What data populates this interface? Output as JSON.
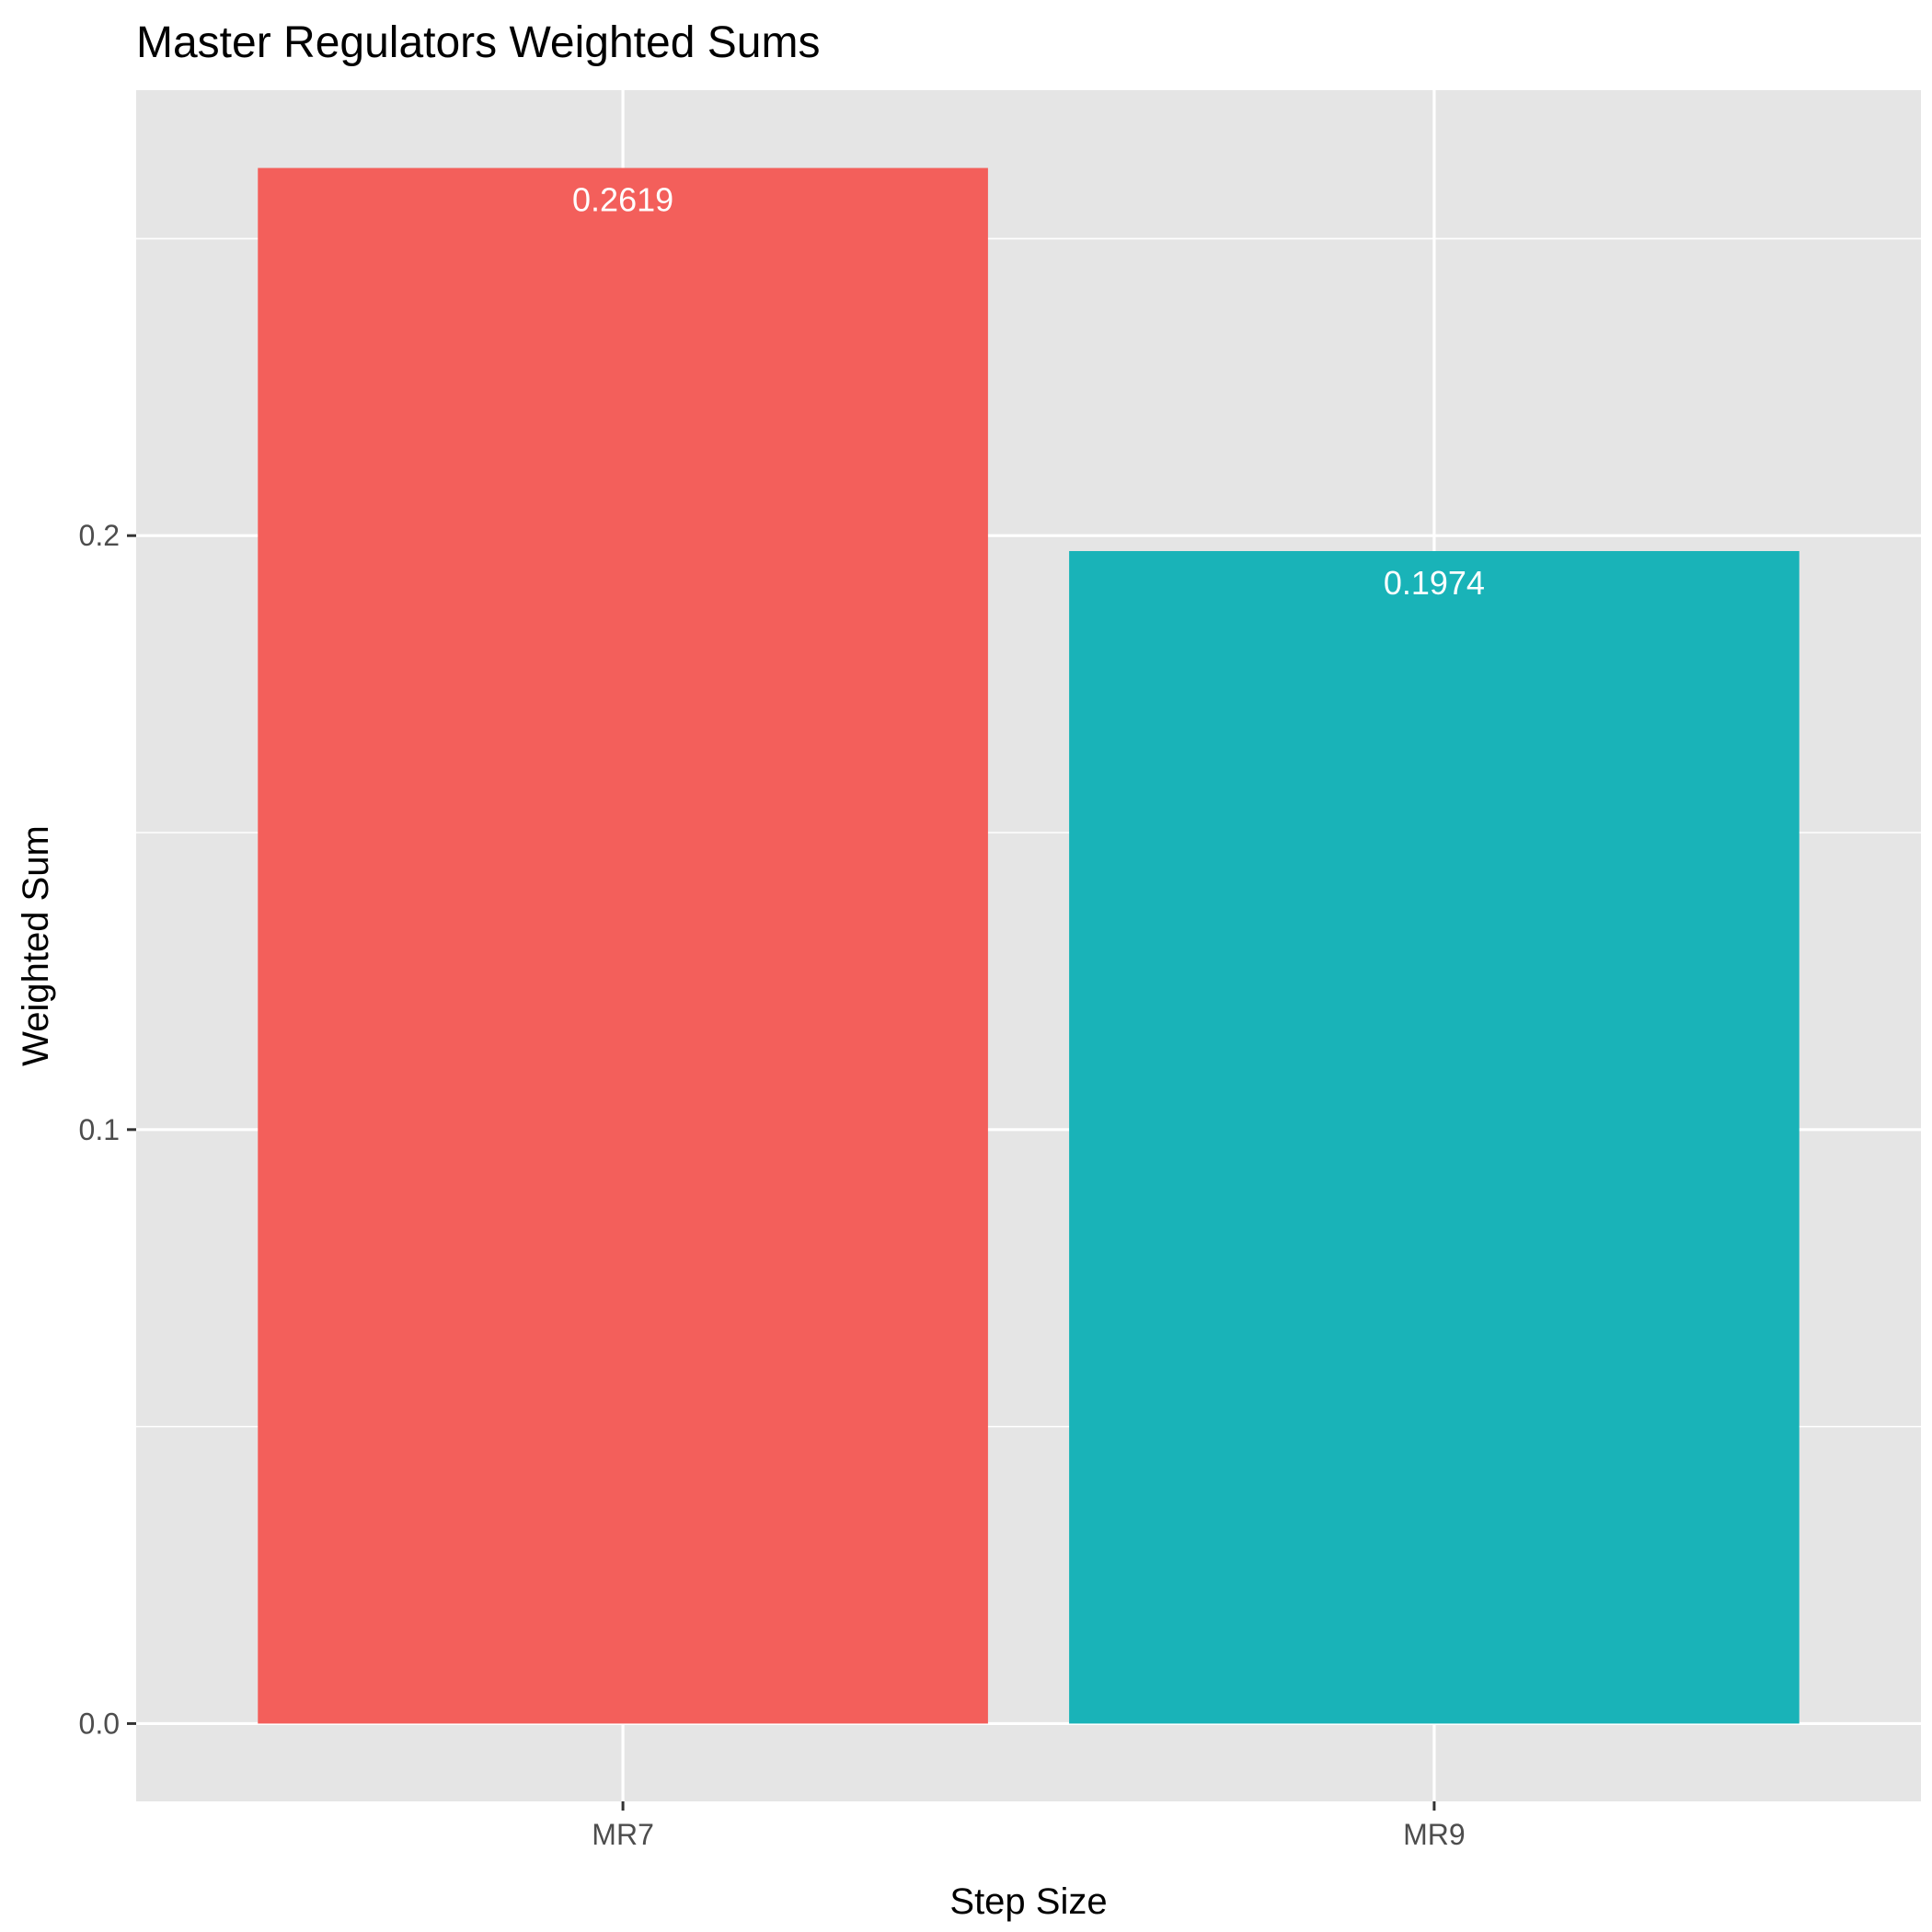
{
  "chart_data": {
    "type": "bar",
    "title": "Master Regulators Weighted Sums",
    "xlabel": "Step Size",
    "ylabel": "Weighted Sum",
    "categories": [
      "MR7",
      "MR9"
    ],
    "values": [
      0.2619,
      0.1974
    ],
    "value_labels": [
      "0.2619",
      "0.1974"
    ],
    "colors": [
      "#F35F5B",
      "#19B3B8"
    ],
    "yticks": [
      0.0,
      0.1,
      0.2
    ],
    "ytick_labels": [
      "0.0",
      "0.1",
      "0.2"
    ],
    "ylim": [
      -0.0131,
      0.275
    ],
    "grid": true,
    "legend": "none",
    "panel_background": "#E5E5E5",
    "gridline_color": "#FFFFFF"
  }
}
